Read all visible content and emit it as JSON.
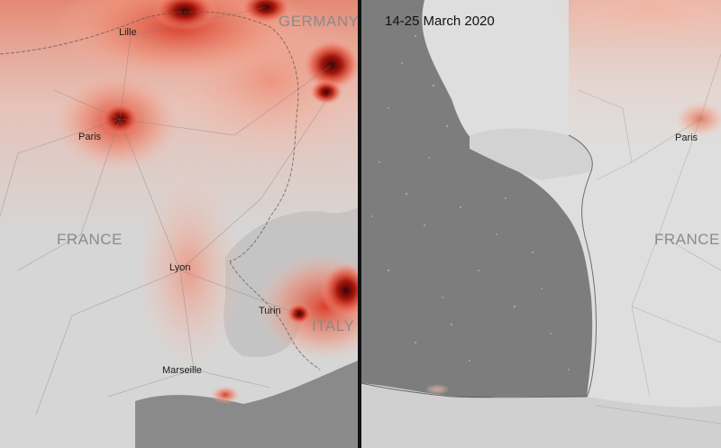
{
  "map": {
    "left_panel": {
      "cities": {
        "lille": "Lille",
        "paris": "Paris",
        "lyon": "Lyon",
        "turin": "Turin",
        "marseille": "Marseille"
      },
      "countries": {
        "france": "FRANCE",
        "germany": "GERMANY",
        "italy": "ITALY"
      }
    },
    "right_panel": {
      "date_label": "14-25 March 2020",
      "cities": {
        "paris": "Paris"
      },
      "countries": {
        "france": "FRANCE"
      }
    },
    "colors": {
      "land": "#dcdcdc",
      "sea": "#7b7b7b",
      "no2_low": "#f6c4b2",
      "no2_mid": "#ea6a4a",
      "no2_high": "#b0180c",
      "no2_peak": "#4a0608",
      "divider": "#111111"
    }
  }
}
